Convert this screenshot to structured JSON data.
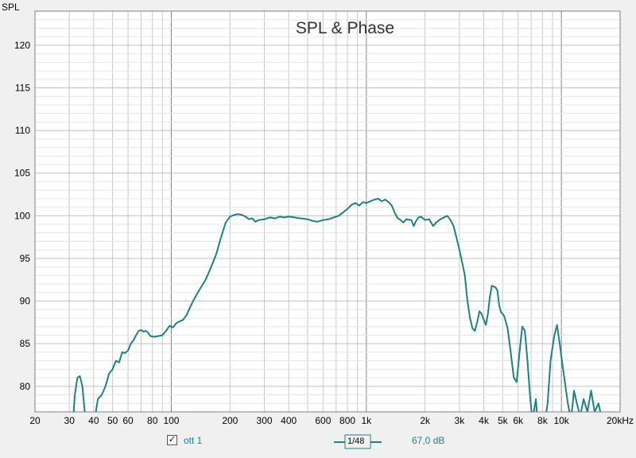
{
  "chart_data": {
    "type": "line",
    "title": "SPL & Phase",
    "ylabel": "SPL",
    "xlabel": "",
    "x_scale": "log",
    "xlim": [
      20,
      20000
    ],
    "ylim": [
      77,
      124
    ],
    "x_ticks": [
      {
        "v": 20,
        "label": "20"
      },
      {
        "v": 30,
        "label": "30"
      },
      {
        "v": 40,
        "label": "40"
      },
      {
        "v": 50,
        "label": "50"
      },
      {
        "v": 60,
        "label": "60"
      },
      {
        "v": 80,
        "label": "80"
      },
      {
        "v": 100,
        "label": "100"
      },
      {
        "v": 200,
        "label": "200"
      },
      {
        "v": 300,
        "label": "300"
      },
      {
        "v": 400,
        "label": "400"
      },
      {
        "v": 600,
        "label": "600"
      },
      {
        "v": 800,
        "label": "800"
      },
      {
        "v": 1000,
        "label": "1k"
      },
      {
        "v": 2000,
        "label": "2k"
      },
      {
        "v": 3000,
        "label": "3k"
      },
      {
        "v": 4000,
        "label": "4k"
      },
      {
        "v": 5000,
        "label": "5k"
      },
      {
        "v": 6000,
        "label": "6k"
      },
      {
        "v": 8000,
        "label": "8k"
      },
      {
        "v": 10000,
        "label": "10k"
      },
      {
        "v": 20000,
        "label": "20kHz"
      }
    ],
    "y_ticks": [
      80,
      85,
      90,
      95,
      100,
      105,
      110,
      115,
      120
    ],
    "grid": true,
    "series": [
      {
        "name": "ott 1",
        "color": "#1e8282",
        "points": [
          [
            31,
            74
          ],
          [
            32,
            79
          ],
          [
            33,
            81
          ],
          [
            34,
            81.2
          ],
          [
            35,
            80
          ],
          [
            36,
            77
          ],
          [
            37,
            74
          ],
          [
            40,
            74
          ],
          [
            41,
            77
          ],
          [
            42,
            78.5
          ],
          [
            44,
            79
          ],
          [
            46,
            80
          ],
          [
            48,
            81.5
          ],
          [
            50,
            82
          ],
          [
            52,
            83
          ],
          [
            54,
            82.8
          ],
          [
            56,
            84
          ],
          [
            58,
            83.9
          ],
          [
            60,
            84.2
          ],
          [
            62,
            85
          ],
          [
            64,
            85.4
          ],
          [
            66,
            86
          ],
          [
            68,
            86.5
          ],
          [
            70,
            86.6
          ],
          [
            72,
            86.4
          ],
          [
            74,
            86.5
          ],
          [
            76,
            86.3
          ],
          [
            78,
            85.9
          ],
          [
            82,
            85.8
          ],
          [
            86,
            85.9
          ],
          [
            90,
            86
          ],
          [
            94,
            86.5
          ],
          [
            98,
            87.1
          ],
          [
            102,
            86.9
          ],
          [
            106,
            87.4
          ],
          [
            110,
            87.6
          ],
          [
            115,
            87.8
          ],
          [
            120,
            88.4
          ],
          [
            125,
            89.3
          ],
          [
            130,
            90.1
          ],
          [
            140,
            91.4
          ],
          [
            150,
            92.5
          ],
          [
            160,
            94
          ],
          [
            170,
            95.5
          ],
          [
            180,
            97.5
          ],
          [
            190,
            99.2
          ],
          [
            200,
            99.9
          ],
          [
            210,
            100.1
          ],
          [
            220,
            100.2
          ],
          [
            230,
            100.1
          ],
          [
            240,
            99.9
          ],
          [
            250,
            99.6
          ],
          [
            260,
            99.7
          ],
          [
            270,
            99.3
          ],
          [
            280,
            99.5
          ],
          [
            300,
            99.6
          ],
          [
            320,
            99.8
          ],
          [
            340,
            99.7
          ],
          [
            360,
            99.9
          ],
          [
            380,
            99.8
          ],
          [
            400,
            99.9
          ],
          [
            430,
            99.8
          ],
          [
            460,
            99.7
          ],
          [
            500,
            99.6
          ],
          [
            530,
            99.4
          ],
          [
            560,
            99.3
          ],
          [
            600,
            99.5
          ],
          [
            640,
            99.6
          ],
          [
            680,
            99.8
          ],
          [
            720,
            100
          ],
          [
            760,
            100.4
          ],
          [
            800,
            100.8
          ],
          [
            840,
            101.3
          ],
          [
            880,
            101.5
          ],
          [
            920,
            101.2
          ],
          [
            960,
            101.6
          ],
          [
            1000,
            101.5
          ],
          [
            1050,
            101.7
          ],
          [
            1100,
            101.9
          ],
          [
            1150,
            102
          ],
          [
            1200,
            101.7
          ],
          [
            1250,
            101.9
          ],
          [
            1300,
            101.6
          ],
          [
            1350,
            101.2
          ],
          [
            1400,
            100.3
          ],
          [
            1450,
            99.7
          ],
          [
            1500,
            99.5
          ],
          [
            1550,
            99.2
          ],
          [
            1600,
            99.6
          ],
          [
            1700,
            99.5
          ],
          [
            1750,
            98.8
          ],
          [
            1800,
            99.4
          ],
          [
            1850,
            99.8
          ],
          [
            1900,
            99.9
          ],
          [
            2000,
            99.5
          ],
          [
            2100,
            99.6
          ],
          [
            2200,
            98.8
          ],
          [
            2300,
            99.3
          ],
          [
            2400,
            99.6
          ],
          [
            2500,
            99.8
          ],
          [
            2600,
            100
          ],
          [
            2700,
            99.5
          ],
          [
            2800,
            98.8
          ],
          [
            2900,
            97.4
          ],
          [
            3000,
            96
          ],
          [
            3100,
            94.5
          ],
          [
            3200,
            93
          ],
          [
            3300,
            90
          ],
          [
            3400,
            88
          ],
          [
            3500,
            86.8
          ],
          [
            3600,
            86.5
          ],
          [
            3700,
            87.5
          ],
          [
            3800,
            88.8
          ],
          [
            3900,
            88.5
          ],
          [
            4000,
            87.8
          ],
          [
            4100,
            87.2
          ],
          [
            4200,
            88.5
          ],
          [
            4300,
            90.5
          ],
          [
            4400,
            91.8
          ],
          [
            4600,
            91.6
          ],
          [
            4700,
            91.2
          ],
          [
            4800,
            89.5
          ],
          [
            4900,
            88.7
          ],
          [
            5000,
            88.5
          ],
          [
            5100,
            88.2
          ],
          [
            5300,
            86.8
          ],
          [
            5500,
            84
          ],
          [
            5700,
            81
          ],
          [
            5900,
            80.5
          ],
          [
            6100,
            84
          ],
          [
            6300,
            87
          ],
          [
            6500,
            86.5
          ],
          [
            6700,
            83
          ],
          [
            6900,
            79
          ],
          [
            7100,
            76
          ],
          [
            7400,
            78.5
          ],
          [
            7600,
            75
          ],
          [
            8000,
            74
          ],
          [
            8500,
            78
          ],
          [
            8800,
            83
          ],
          [
            9200,
            86
          ],
          [
            9500,
            87.2
          ],
          [
            9800,
            85
          ],
          [
            10200,
            82
          ],
          [
            10500,
            80
          ],
          [
            10800,
            78
          ],
          [
            11200,
            76
          ],
          [
            11600,
            79.5
          ],
          [
            12000,
            78
          ],
          [
            12500,
            76.5
          ],
          [
            13000,
            78.5
          ],
          [
            13600,
            77
          ],
          [
            14200,
            79.5
          ],
          [
            14800,
            77
          ],
          [
            15500,
            78
          ],
          [
            16000,
            76.5
          ]
        ]
      }
    ]
  },
  "legend": {
    "checkbox_mark": "✓",
    "series_label": "ott 1",
    "smoothing_label": "1/48",
    "level": "67,0 dB"
  }
}
